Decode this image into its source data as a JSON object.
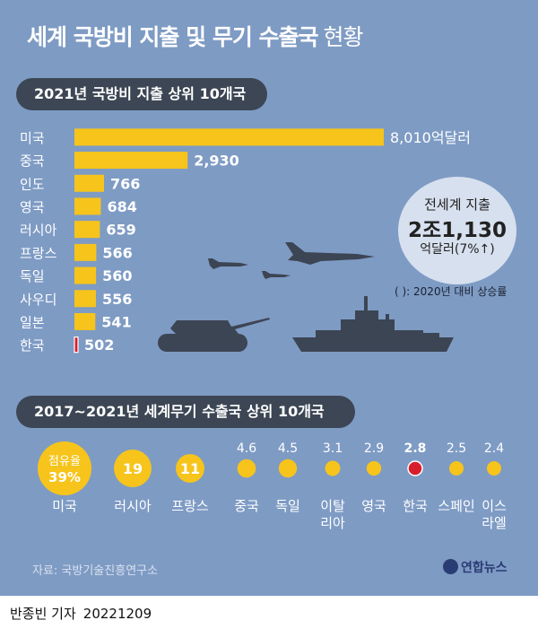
{
  "header": {
    "title": "세계 국방비 지출 및 무기 수출국",
    "title_suffix": "현황"
  },
  "colors": {
    "background": "#7e9bc4",
    "bar": "#f6c41b",
    "pill": "#3c4654",
    "highlight": "#d81e2a",
    "silhouette": "#3c4553"
  },
  "spending": {
    "heading": "2021년 국방비 지출 상위 10개국",
    "unit_label": "억달러",
    "total_circle": {
      "line1": "전세계 지출",
      "amount": "2조1,130",
      "unit": "억달러",
      "change": "(7%↑)"
    },
    "note": "( ): 2020년 대비 상승률"
  },
  "exports": {
    "heading": "2017~2021년 세계무기 수출국 상위 10개국",
    "share_label": "점유율",
    "highlight_country": "한국"
  },
  "chart_data": [
    {
      "type": "bar",
      "orientation": "horizontal",
      "title": "2021년 국방비 지출 상위 10개국",
      "unit": "억달러",
      "categories": [
        "미국",
        "중국",
        "인도",
        "영국",
        "러시아",
        "프랑스",
        "독일",
        "사우디",
        "일본",
        "한국"
      ],
      "values": [
        8010,
        2930,
        766,
        684,
        659,
        566,
        560,
        556,
        541,
        502
      ],
      "value_labels": [
        "8,010",
        "2,930",
        "766",
        "684",
        "659",
        "566",
        "560",
        "556",
        "541",
        "502"
      ],
      "highlight": "한국"
    },
    {
      "type": "bubble",
      "title": "2017~2021년 세계무기 수출국 상위 10개국",
      "unit": "%",
      "categories": [
        "미국",
        "러시아",
        "프랑스",
        "중국",
        "독일",
        "이탈리아",
        "영국",
        "한국",
        "스페인",
        "이스라엘"
      ],
      "category_lines": [
        [
          "미국"
        ],
        [
          "러시아"
        ],
        [
          "프랑스"
        ],
        [
          "중국"
        ],
        [
          "독일"
        ],
        [
          "이탈",
          "리아"
        ],
        [
          "영국"
        ],
        [
          "한국"
        ],
        [
          "스페인"
        ],
        [
          "이스",
          "라엘"
        ]
      ],
      "values": [
        39,
        19,
        11,
        4.6,
        4.5,
        3.1,
        2.9,
        2.8,
        2.5,
        2.4
      ],
      "value_labels": [
        "39%",
        "19",
        "11",
        "4.6",
        "4.5",
        "3.1",
        "2.9",
        "2.8",
        "2.5",
        "2.4"
      ],
      "highlight": "한국"
    }
  ],
  "footer": {
    "source": "자료: 국방기술진흥연구소",
    "brand": "연합뉴스"
  },
  "credit": {
    "reporter": "반종빈 기자",
    "date": "20221209"
  }
}
